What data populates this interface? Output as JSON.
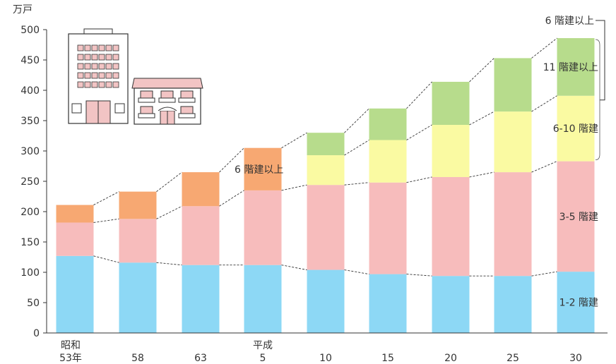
{
  "chart_data": {
    "type": "bar",
    "stacked": true,
    "unit_label": "万戸",
    "categories": [
      {
        "top": "昭和",
        "bottom": "53年"
      },
      {
        "top": "",
        "bottom": "58"
      },
      {
        "top": "",
        "bottom": "63"
      },
      {
        "top": "平成",
        "bottom": "5"
      },
      {
        "top": "",
        "bottom": "10"
      },
      {
        "top": "",
        "bottom": "15"
      },
      {
        "top": "",
        "bottom": "20"
      },
      {
        "top": "",
        "bottom": "25"
      },
      {
        "top": "",
        "bottom": "30"
      }
    ],
    "ylim": [
      0,
      500
    ],
    "yticks": [
      "0",
      "50",
      "100",
      "150",
      "200",
      "250",
      "300",
      "350",
      "400",
      "450",
      "500"
    ],
    "series": [
      {
        "key": "s12",
        "name": "1-2 階建",
        "color": "#8dd8f5",
        "values": [
          127,
          116,
          112,
          112,
          104,
          97,
          94,
          94,
          101
        ]
      },
      {
        "key": "s35",
        "name": "3-5 階建",
        "color": "#f7bcbc",
        "values": [
          55,
          72,
          97,
          123,
          140,
          151,
          163,
          171,
          182
        ]
      },
      {
        "key": "s6p",
        "name": "6 階建以上",
        "color": "#f7a872",
        "values": [
          29,
          45,
          56,
          70,
          null,
          null,
          null,
          null,
          null
        ]
      },
      {
        "key": "s610",
        "name": "6-10 階建",
        "color": "#fafaa2",
        "values": [
          null,
          null,
          null,
          null,
          49,
          70,
          86,
          100,
          108
        ]
      },
      {
        "key": "s11",
        "name": "11 階建以上",
        "color": "#b7dc8c",
        "values": [
          null,
          null,
          null,
          null,
          37,
          52,
          71,
          88,
          95
        ]
      }
    ],
    "annotations": {
      "mid_label": "6 階建以上",
      "top_label": "6 階建以上"
    },
    "grid": false
  },
  "colors": {
    "axis": "#333333",
    "dash": "#333333"
  }
}
